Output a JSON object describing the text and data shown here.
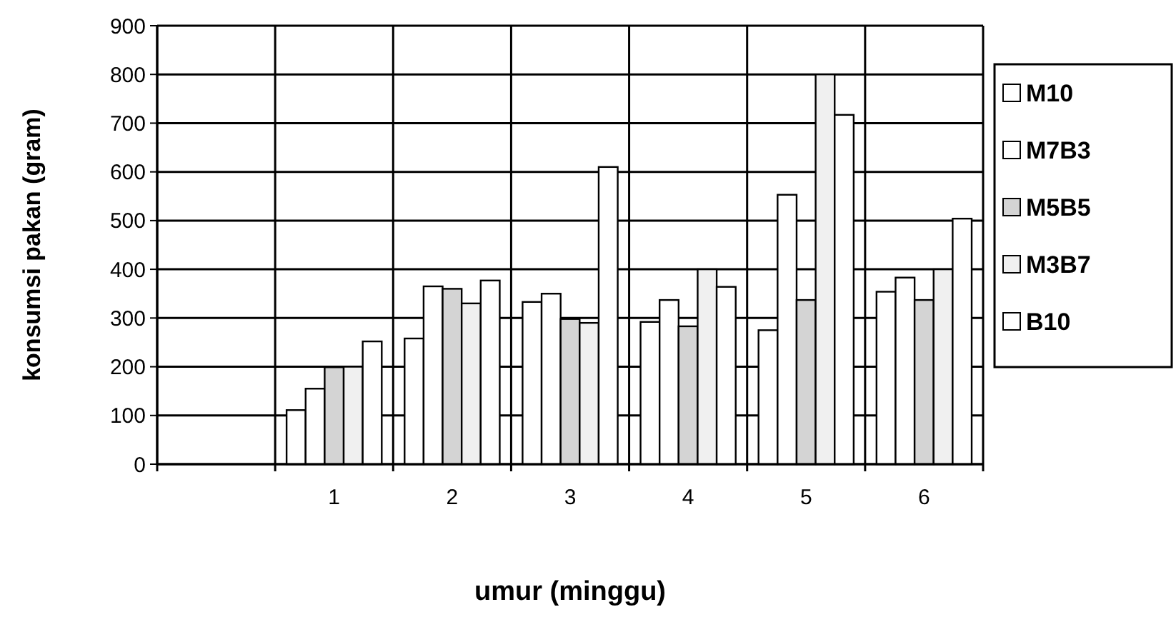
{
  "chart_data": {
    "type": "bar",
    "xlabel": "umur (minggu)",
    "ylabel": "konsumsi pakan (gram)",
    "categories": [
      null,
      "1",
      "2",
      "3",
      "4",
      "5",
      "6"
    ],
    "series": [
      {
        "name": "M10",
        "color": "#ffffff",
        "values": [
          null,
          111,
          258,
          333,
          292,
          275,
          354
        ]
      },
      {
        "name": "M7B3",
        "color": "#ffffff",
        "values": [
          null,
          155,
          365,
          350,
          337,
          553,
          383
        ]
      },
      {
        "name": "M5B5",
        "color": "#d4d4d4",
        "values": [
          null,
          199,
          360,
          298,
          283,
          337,
          337
        ]
      },
      {
        "name": "M3B7",
        "color": "#f0f0f0",
        "values": [
          null,
          200,
          330,
          290,
          400,
          800,
          400
        ]
      },
      {
        "name": "B10",
        "color": "#ffffff",
        "values": [
          null,
          252,
          377,
          610,
          364,
          717,
          504
        ]
      }
    ],
    "ylim": [
      0,
      900
    ],
    "yticks": [
      0,
      100,
      200,
      300,
      400,
      500,
      600,
      700,
      800,
      900
    ],
    "grid": true,
    "legend": "right"
  }
}
